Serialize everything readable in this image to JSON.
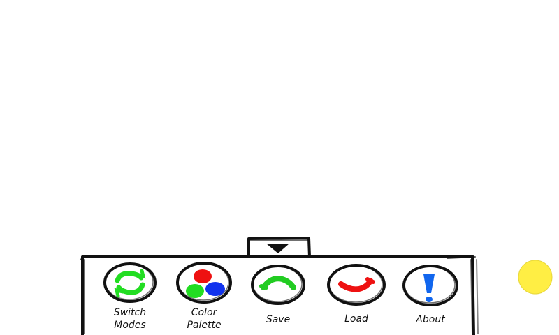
{
  "toolbar": {
    "collapse_icon": "triangle-down-icon",
    "items": [
      {
        "label": "Switch\nModes",
        "icon": "cycle-arrows-icon",
        "icon_color": "#22dd22"
      },
      {
        "label": "Color\nPalette",
        "icon": "palette-dots-icon",
        "colors": [
          "#ee1111",
          "#22dd22",
          "#1133ee"
        ]
      },
      {
        "label": "Save",
        "icon": "save-arc-icon",
        "icon_color": "#22cc22"
      },
      {
        "label": "Load",
        "icon": "load-arc-icon",
        "icon_color": "#ee1111"
      },
      {
        "label": "About",
        "icon": "exclamation-icon",
        "icon_color": "#1166ee"
      }
    ]
  },
  "indicator": {
    "color": "#ffee44"
  }
}
